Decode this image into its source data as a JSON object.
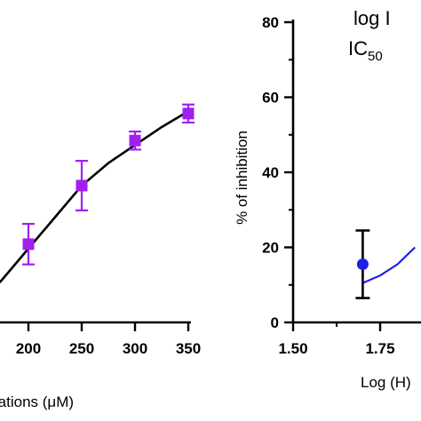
{
  "chart_data": [
    {
      "type": "line",
      "xlabel": "rations (μM)",
      "ylabel": "",
      "x_ticks": [
        "200",
        "250",
        "300",
        "350"
      ],
      "xlim": [
        150,
        350
      ],
      "ylim": [
        0,
        70
      ],
      "series": [
        {
          "color": "#a020f0",
          "marker": "square",
          "points": [
            {
              "x": 200,
              "y": 16,
              "err": 4.5
            },
            {
              "x": 250,
              "y": 29,
              "err": 5.5
            },
            {
              "x": 300,
              "y": 39,
              "err": 2.0
            },
            {
              "x": 350,
              "y": 45,
              "err": 2.0
            }
          ]
        }
      ],
      "fit_line": {
        "color": "#000000",
        "x": [
          150,
          175,
          200,
          225,
          250,
          275,
          300,
          325,
          350
        ],
        "y": [
          2,
          8,
          15,
          22,
          29,
          34,
          38,
          42,
          45.5
        ]
      }
    },
    {
      "type": "scatter",
      "xlabel": "Log (H)",
      "ylabel": "% of inhibition",
      "x_ticks": [
        "1.50",
        "1.75"
      ],
      "y_ticks": [
        "0",
        "20",
        "40",
        "60",
        "80"
      ],
      "xlim": [
        1.5,
        1.9
      ],
      "ylim": [
        0,
        80
      ],
      "annotations": [
        "log I",
        "IC"
      ],
      "annotation_subscript": "50",
      "series": [
        {
          "color": "#1e1ee6",
          "marker": "circle",
          "points": [
            {
              "x": 1.7,
              "y": 15.5,
              "err_plus": 9.0,
              "err_minus": 9.0
            }
          ]
        }
      ],
      "fit_line": {
        "color": "#1e1ee6",
        "x": [
          1.7,
          1.75,
          1.8,
          1.85
        ],
        "y": [
          10.5,
          12.5,
          15.5,
          20.0
        ]
      }
    }
  ]
}
